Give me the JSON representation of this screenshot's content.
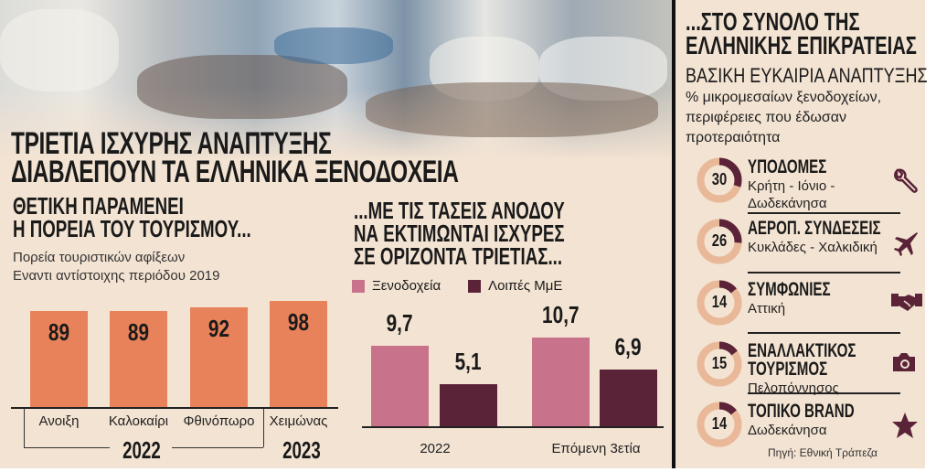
{
  "headline": [
    "ΤΡΙΕΤΙΑ ΙΣΧΥΡΗΣ ΑΝΑΠΤΥΞΗΣ",
    "ΔΙΑΒΛΕΠΟΥΝ ΤΑ ΕΛΛΗΝΙΚΑ ΞΕΝΟΔΟΧΕΙΑ"
  ],
  "colors": {
    "background": "#f3e3d2",
    "orange": "#e8825a",
    "pink": "#c8738b",
    "dark": "#5a2338",
    "donut_light": "#e9b898"
  },
  "chart_data": [
    {
      "type": "bar",
      "title": [
        "ΘΕΤΙΚΗ ΠΑΡΑΜΕΝΕΙ",
        "Η ΠΟΡΕΙΑ ΤΟΥ ΤΟΥΡΙΣΜΟΥ..."
      ],
      "subtitle": [
        "Πορεία τουριστικών αφίξεων",
        "Εναντι αντίστοιχης περιόδου 2019"
      ],
      "categories": [
        "Ανοιξη",
        "Καλοκαίρι",
        "Φθινόπωρο",
        "Χειμώνας"
      ],
      "groups": [
        {
          "label": "2022",
          "span": [
            0,
            2
          ]
        },
        {
          "label": "2023",
          "span": [
            3,
            3
          ]
        }
      ],
      "values": [
        89,
        89,
        92,
        98
      ],
      "data_labels": [
        "89",
        "89",
        "92",
        "98"
      ],
      "unit": "%"
    },
    {
      "type": "bar",
      "title": [
        "...ΜΕ ΤΙΣ ΤΑΣΕΙΣ ΑΝΟΔΟΥ",
        "ΝΑ ΕΚΤΙΜΩΝΤΑΙ ΙΣΧΥΡΕΣ",
        "ΣΕ ΟΡΙΖΟΝΤΑ ΤΡΙΕΤΙΑΣ..."
      ],
      "categories": [
        "2022",
        "Επόμενη 3ετία"
      ],
      "legend_position": "top-left",
      "series": [
        {
          "name": "Ξενοδοχεία",
          "values": [
            9.7,
            10.7
          ],
          "labels": [
            "9,7",
            "10,7"
          ],
          "color": "#c8738b"
        },
        {
          "name": "Λοιπές ΜμΕ",
          "values": [
            5.1,
            6.9
          ],
          "labels": [
            "5,1",
            "6,9"
          ],
          "color": "#5a2338"
        }
      ],
      "unit": "%"
    },
    {
      "type": "pie",
      "title": [
        "...ΣΤΟ ΣΥΝΟΛΟ ΤΗΣ",
        "ΕΛΛΗΝΙΚΗΣ ΕΠΙΚΡΑΤΕΙΑΣ"
      ],
      "subtitle": "ΒΑΣΙΚΗ ΕΥΚΑΙΡΙΑ ΑΝΑΠΤΥΞΗΣ",
      "description": [
        "% μικρομεσαίων ξενοδοχείων,",
        "περιφέρειες που έδωσαν",
        "προτεραιότητα"
      ],
      "items": [
        {
          "value": 30,
          "title": [
            "ΥΠΟΔΟΜΕΣ"
          ],
          "regions": [
            "Κρήτη - Ιόνιο -",
            "Δωδεκάνησα"
          ],
          "icon": "wrench-icon"
        },
        {
          "value": 26,
          "title": [
            "ΑΕΡΟΠ. ΣΥΝΔΕΣΕΙΣ"
          ],
          "regions": [
            "Κυκλάδες - Χαλκιδική"
          ],
          "icon": "airplane-icon"
        },
        {
          "value": 14,
          "title": [
            "ΣΥΜΦΩΝΙΕΣ"
          ],
          "regions": [
            "Αττική"
          ],
          "icon": "handshake-icon"
        },
        {
          "value": 15,
          "title": [
            "ΕΝΑΛΛΑΚΤΙΚΟΣ",
            "ΤΟΥΡΙΣΜΟΣ"
          ],
          "regions": [
            "Πελοπόννησος"
          ],
          "icon": "camera-icon"
        },
        {
          "value": 14,
          "title": [
            "ΤΟΠΙΚΟ BRAND"
          ],
          "regions": [
            "Δωδεκάνησα"
          ],
          "icon": "star-icon"
        }
      ],
      "unit": "%",
      "source": "Πηγή: Εθνική Τράπεζα"
    }
  ]
}
